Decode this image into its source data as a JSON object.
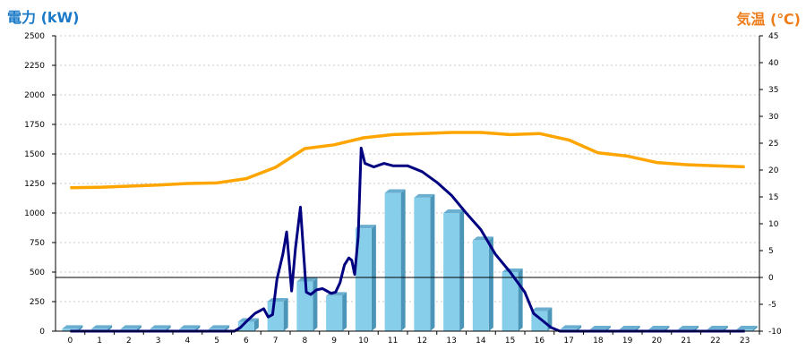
{
  "chart_data": {
    "type": "bar",
    "left_axis_title": "電力 (kW)",
    "right_axis_title": "気温 (℃)",
    "colors": {
      "left_title": "#1a7ac8",
      "right_title": "#ee7d1a",
      "bar": "#87ceeb",
      "bar_side": "#4a95b8",
      "bar_top": "#6aaed0",
      "power_line": "#000080",
      "temp_line": "#ffa500",
      "grid": "#c8c8c8",
      "axis": "#000000"
    },
    "x_ticks": [
      "0",
      "1",
      "2",
      "3",
      "4",
      "5",
      "6",
      "7",
      "8",
      "9",
      "10",
      "11",
      "12",
      "13",
      "14",
      "15",
      "16",
      "17",
      "18",
      "19",
      "20",
      "21",
      "22",
      "23"
    ],
    "y_left": {
      "min": 0,
      "max": 2500,
      "ticks": [
        0,
        250,
        500,
        750,
        1000,
        1250,
        1500,
        1750,
        2000,
        2250,
        2500
      ]
    },
    "y_right": {
      "min": -10,
      "max": 45,
      "ticks": [
        -10,
        -5,
        0,
        5,
        10,
        15,
        20,
        25,
        30,
        35,
        40,
        45
      ]
    },
    "grid": true,
    "bar_series": {
      "axis": "left",
      "values": [
        20,
        20,
        20,
        20,
        20,
        20,
        80,
        250,
        420,
        300,
        870,
        1170,
        1130,
        1000,
        770,
        500,
        170,
        20,
        15,
        15,
        15,
        15,
        15,
        15
      ]
    },
    "power_series": {
      "axis": "left",
      "points": [
        [
          0,
          0
        ],
        [
          4,
          0
        ],
        [
          5.6,
          0
        ],
        [
          5.8,
          30
        ],
        [
          6.0,
          80
        ],
        [
          6.3,
          150
        ],
        [
          6.6,
          190
        ],
        [
          6.75,
          120
        ],
        [
          6.9,
          140
        ],
        [
          7.05,
          440
        ],
        [
          7.25,
          650
        ],
        [
          7.38,
          840
        ],
        [
          7.55,
          340
        ],
        [
          7.68,
          700
        ],
        [
          7.85,
          1050
        ],
        [
          8.05,
          330
        ],
        [
          8.2,
          310
        ],
        [
          8.4,
          350
        ],
        [
          8.6,
          360
        ],
        [
          8.75,
          340
        ],
        [
          8.9,
          320
        ],
        [
          9.05,
          330
        ],
        [
          9.2,
          410
        ],
        [
          9.35,
          560
        ],
        [
          9.5,
          620
        ],
        [
          9.6,
          600
        ],
        [
          9.7,
          480
        ],
        [
          9.82,
          800
        ],
        [
          9.92,
          1550
        ],
        [
          10.05,
          1420
        ],
        [
          10.35,
          1390
        ],
        [
          10.7,
          1420
        ],
        [
          11.0,
          1400
        ],
        [
          11.5,
          1400
        ],
        [
          12.0,
          1350
        ],
        [
          12.5,
          1260
        ],
        [
          13.0,
          1150
        ],
        [
          13.5,
          1000
        ],
        [
          14.0,
          860
        ],
        [
          14.5,
          650
        ],
        [
          15.0,
          500
        ],
        [
          15.5,
          330
        ],
        [
          15.8,
          150
        ],
        [
          16.1,
          90
        ],
        [
          16.4,
          30
        ],
        [
          16.7,
          0
        ],
        [
          17,
          0
        ],
        [
          23,
          0
        ]
      ]
    },
    "temperature_series": {
      "axis": "right",
      "points": [
        [
          0,
          16.7
        ],
        [
          1,
          16.8
        ],
        [
          2,
          17.0
        ],
        [
          3,
          17.2
        ],
        [
          4,
          17.5
        ],
        [
          5,
          17.6
        ],
        [
          6,
          18.4
        ],
        [
          7,
          20.5
        ],
        [
          8,
          24.0
        ],
        [
          9,
          24.7
        ],
        [
          10,
          26.0
        ],
        [
          11,
          26.6
        ],
        [
          12,
          26.8
        ],
        [
          13,
          27.0
        ],
        [
          14,
          27.0
        ],
        [
          15,
          26.6
        ],
        [
          16,
          26.8
        ],
        [
          17,
          25.6
        ],
        [
          18,
          23.2
        ],
        [
          19,
          22.6
        ],
        [
          20,
          21.4
        ],
        [
          21,
          21.0
        ],
        [
          22,
          20.8
        ],
        [
          23,
          20.6
        ]
      ]
    }
  }
}
